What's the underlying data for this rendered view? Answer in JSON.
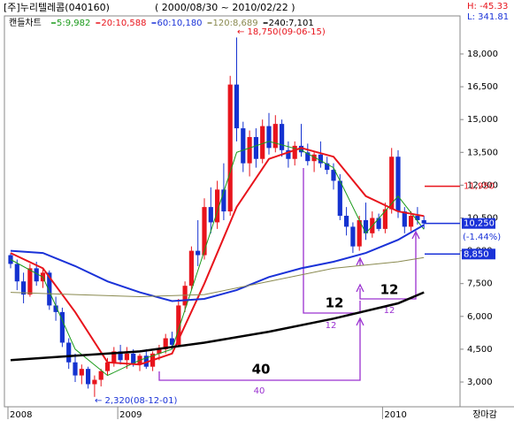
{
  "header": {
    "name": "[주]누리텔레콤(040160)",
    "range": "( 2000/08/30 ~ 2010/02/22 )",
    "high": "H: -45.33",
    "low": "L: 341.81"
  },
  "chart_data": {
    "type": "candlestick",
    "title": "캔들차트",
    "categories": [
      "2008",
      null,
      null,
      null,
      null,
      null,
      null,
      null,
      null,
      null,
      null,
      null,
      null,
      null,
      null,
      null,
      null,
      "2009",
      null,
      null,
      null,
      null,
      null,
      null,
      null,
      null,
      null,
      null,
      null,
      null,
      null,
      null,
      null,
      null,
      null,
      null,
      null,
      null,
      null,
      null,
      null,
      null,
      null,
      null,
      null,
      null,
      null,
      null,
      null,
      null,
      null,
      null,
      null,
      null,
      null,
      null,
      null,
      null,
      "2010",
      null,
      null,
      null,
      null,
      null,
      null
    ],
    "open": [
      8800,
      8400,
      7600,
      7000,
      8200,
      7600,
      8000,
      6500,
      6200,
      4800,
      3900,
      3300,
      3600,
      2900,
      3100,
      3500,
      3900,
      4400,
      4000,
      4300,
      3800,
      4200,
      3700,
      4300,
      4500,
      5000,
      4700,
      6500,
      7400,
      9000,
      8800,
      11000,
      10300,
      11800,
      10800,
      16600,
      14600,
      13000,
      14200,
      13200,
      14700,
      13700,
      14800,
      13600,
      13200,
      13800,
      13500,
      13100,
      13400,
      13000,
      12700,
      12200,
      10600,
      10100,
      9200,
      10400,
      9800,
      10500,
      10000,
      10900,
      13300,
      10800,
      10100,
      10600,
      10400
    ],
    "high": [
      8900,
      8600,
      8000,
      8400,
      8500,
      8200,
      8100,
      6900,
      6400,
      5000,
      4300,
      3800,
      3700,
      3300,
      3600,
      4100,
      4600,
      4700,
      4600,
      4500,
      4300,
      4500,
      4400,
      4700,
      5200,
      5300,
      6800,
      7600,
      9200,
      10400,
      11400,
      11900,
      12200,
      13000,
      17000,
      18750,
      14900,
      14500,
      14600,
      15000,
      15300,
      15200,
      15000,
      14000,
      14000,
      14800,
      13900,
      13500,
      14000,
      13300,
      13000,
      12500,
      11000,
      10300,
      10600,
      11200,
      10800,
      10700,
      11200,
      13700,
      13600,
      11000,
      10800,
      11000,
      10600
    ],
    "low": [
      8200,
      7200,
      6600,
      6900,
      7400,
      7300,
      6300,
      5800,
      4600,
      3600,
      3000,
      2900,
      2700,
      2320,
      2800,
      3300,
      3700,
      3800,
      3600,
      3700,
      3500,
      3600,
      3500,
      4000,
      4300,
      4500,
      4600,
      6200,
      7200,
      8300,
      8600,
      9800,
      10000,
      10400,
      10600,
      14000,
      12600,
      12400,
      12800,
      13000,
      13400,
      13500,
      13300,
      12800,
      12900,
      13300,
      12900,
      12600,
      12800,
      12500,
      11800,
      10400,
      9700,
      8900,
      9000,
      9500,
      9600,
      9900,
      9800,
      10700,
      10500,
      9800,
      9900,
      10200,
      10000
    ],
    "close": [
      8400,
      7600,
      7000,
      8200,
      7600,
      8000,
      6500,
      6200,
      4800,
      3900,
      3300,
      3600,
      2900,
      3100,
      3500,
      3900,
      4400,
      4000,
      4300,
      3800,
      4200,
      3700,
      4300,
      4500,
      5000,
      4700,
      6500,
      7400,
      9000,
      8800,
      11000,
      10300,
      11800,
      10800,
      16600,
      14600,
      13000,
      14200,
      13200,
      14700,
      13700,
      14800,
      13600,
      13200,
      13800,
      13500,
      13100,
      13400,
      13000,
      12700,
      12200,
      10600,
      10100,
      9200,
      10400,
      9800,
      10500,
      10000,
      10900,
      13300,
      10800,
      10100,
      10600,
      10400,
      10250
    ],
    "up_color": "#e8141c",
    "down_color": "#1432d0",
    "series": [
      {
        "name": "5:9,982",
        "color": "#1a9a1a",
        "width": 1,
        "x": [
          0,
          5,
          10,
          15,
          20,
          25,
          30,
          35,
          40,
          45,
          50,
          55,
          60,
          64
        ],
        "values": [
          8600,
          7800,
          4500,
          3300,
          4000,
          4500,
          9000,
          13500,
          14000,
          13600,
          12800,
          9800,
          11500,
          9982
        ]
      },
      {
        "name": "20:10,588",
        "color": "#e8141c",
        "width": 2,
        "x": [
          0,
          5,
          10,
          15,
          20,
          25,
          30,
          35,
          40,
          45,
          50,
          55,
          60,
          64
        ],
        "values": [
          8900,
          8200,
          6200,
          3900,
          3800,
          4300,
          7500,
          11000,
          13200,
          13700,
          13300,
          11500,
          10800,
          10588
        ]
      },
      {
        "name": "60:10,180",
        "color": "#1a32d8",
        "width": 2,
        "x": [
          0,
          5,
          10,
          15,
          20,
          25,
          30,
          35,
          40,
          45,
          50,
          55,
          60,
          64
        ],
        "values": [
          9000,
          8900,
          8300,
          7600,
          7100,
          6700,
          6800,
          7200,
          7800,
          8200,
          8500,
          8900,
          9500,
          10180
        ]
      },
      {
        "name": "120:8,689",
        "color": "#8a8a50",
        "width": 1,
        "x": [
          0,
          10,
          20,
          30,
          40,
          50,
          60,
          64
        ],
        "values": [
          7100,
          7000,
          6900,
          7000,
          7600,
          8200,
          8500,
          8689
        ]
      },
      {
        "name": "240:7,101",
        "color": "#000000",
        "width": 2.5,
        "x": [
          0,
          10,
          20,
          30,
          40,
          50,
          60,
          64
        ],
        "values": [
          4000,
          4200,
          4400,
          4800,
          5300,
          5900,
          6600,
          7101
        ]
      }
    ],
    "ylim": [
      1868,
      19738
    ],
    "yticks": [
      {
        "value": 3000,
        "label": "3,000"
      },
      {
        "value": 4500,
        "label": "4,500"
      },
      {
        "value": 6000,
        "label": "6,000"
      },
      {
        "value": 7500,
        "label": "7,500"
      },
      {
        "value": 9000,
        "label": "9,000"
      },
      {
        "value": 10500,
        "label": "10,500"
      },
      {
        "value": 12000,
        "label": "12,000"
      },
      {
        "value": 13500,
        "label": "13,500"
      },
      {
        "value": 15000,
        "label": "15,000"
      },
      {
        "value": 16500,
        "label": "16,500"
      },
      {
        "value": 18000,
        "label": "18,000"
      }
    ],
    "markers": [
      {
        "value": 11950,
        "label": "11,950",
        "color": "#e8141c",
        "boxed": false
      },
      {
        "value": 10250,
        "label": "10,250",
        "color": "#1a32d8",
        "boxed": true
      },
      {
        "value": 8850,
        "label": "8,850",
        "color": "#1a32d8",
        "boxed": true
      }
    ],
    "change": "(-1.44%)",
    "high_note": "← 18,750(09-06-15)",
    "low_note": "← 2,320(08-12-01)",
    "status": "장마감",
    "periods": [
      "40",
      "40",
      "12",
      "12",
      "12",
      "12"
    ]
  }
}
